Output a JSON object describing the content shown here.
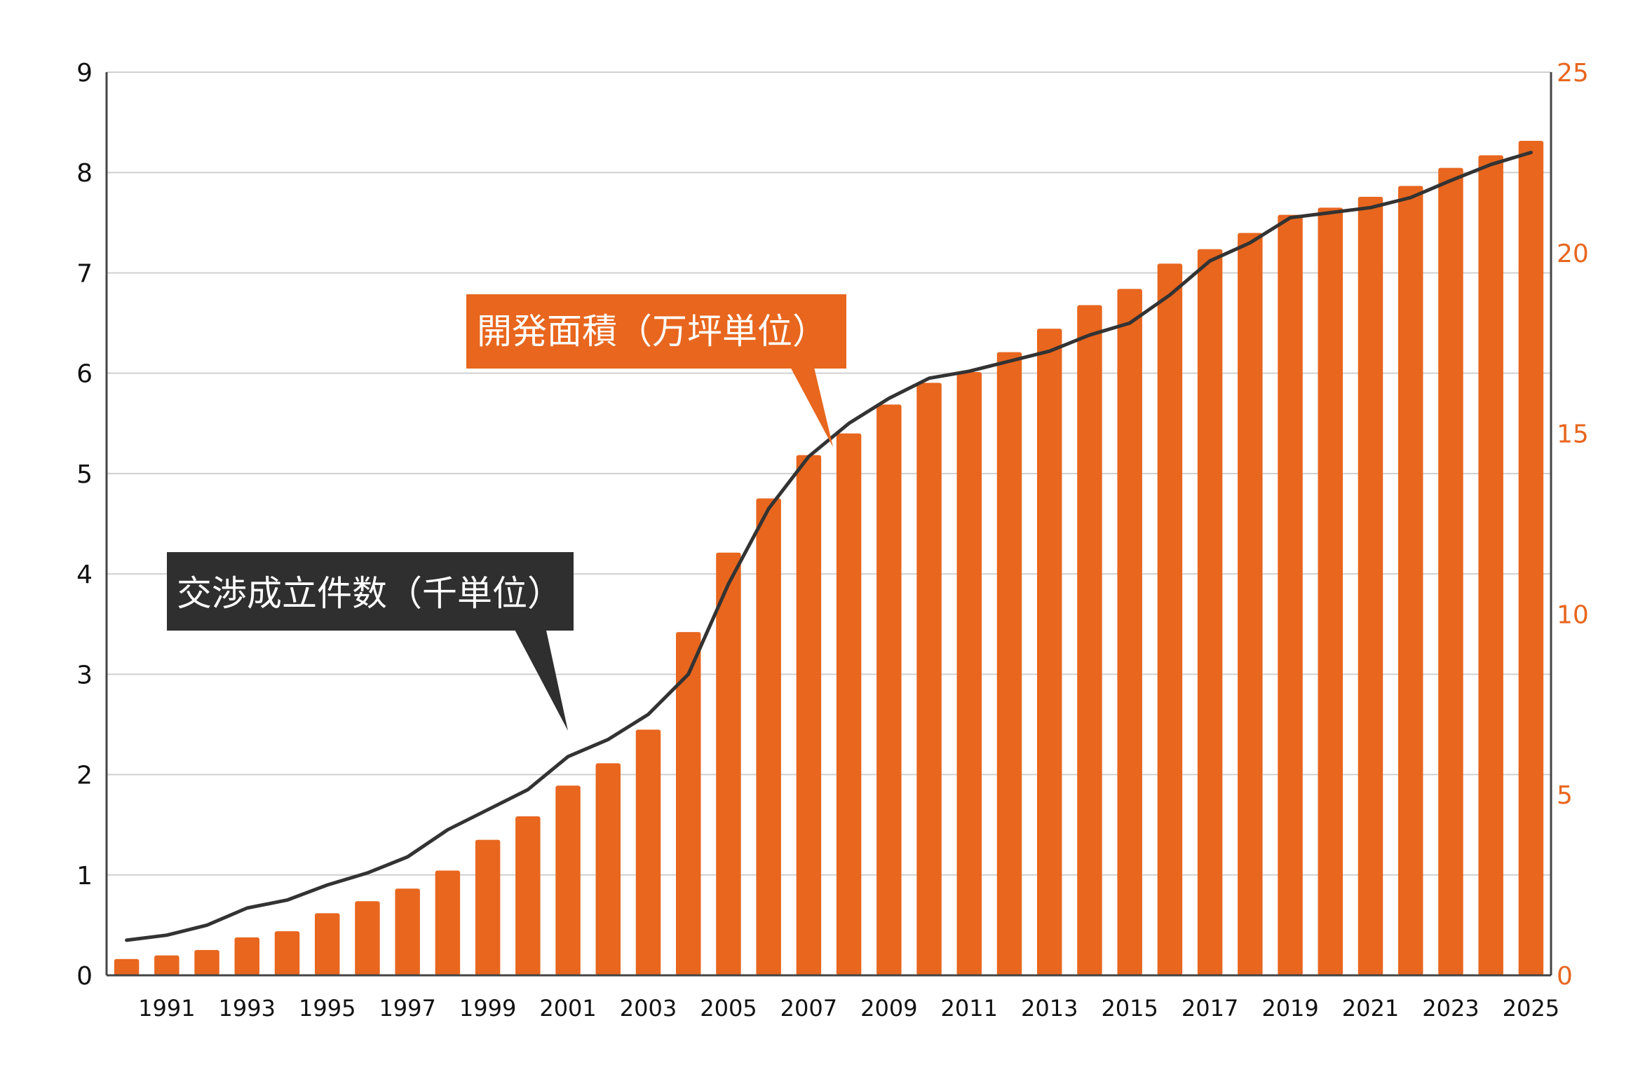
{
  "colors": {
    "bar": "#E8661E",
    "line": "#333333",
    "grid": "#D0D0D0",
    "left_axis_text": "#111111",
    "right_axis_text": "#E8661E",
    "bar_callout_bg": "#E8661E",
    "line_callout_bg": "#2F2F2F"
  },
  "chart_data": {
    "type": "bar+line",
    "title": "",
    "x": [
      1990,
      1991,
      1992,
      1993,
      1994,
      1995,
      1996,
      1997,
      1998,
      1999,
      2000,
      2001,
      2002,
      2003,
      2004,
      2005,
      2006,
      2007,
      2008,
      2009,
      2010,
      2011,
      2012,
      2013,
      2014,
      2015,
      2016,
      2017,
      2018,
      2019,
      2020,
      2021,
      2022,
      2023,
      2024,
      2025
    ],
    "x_tick_labels": [
      "1991",
      "1993",
      "1995",
      "1997",
      "1999",
      "2001",
      "2003",
      "2005",
      "2007",
      "2009",
      "2011",
      "2013",
      "2015",
      "2017",
      "2019",
      "2021",
      "2023",
      "2025"
    ],
    "left_axis": {
      "min": 0,
      "max": 9,
      "ticks": [
        "0",
        "1",
        "2",
        "3",
        "4",
        "5",
        "6",
        "7",
        "8",
        "9"
      ]
    },
    "right_axis": {
      "min": 0,
      "max": 25,
      "ticks": [
        "0",
        "5",
        "10",
        "15",
        "20",
        "25"
      ]
    },
    "series": [
      {
        "name": "開発面積（万坪単位）",
        "type": "bar",
        "axis": "right",
        "values": [
          0.45,
          0.55,
          0.7,
          1.05,
          1.22,
          1.72,
          2.05,
          2.4,
          2.9,
          3.75,
          4.4,
          5.25,
          5.87,
          6.8,
          9.5,
          11.7,
          13.2,
          14.4,
          15.0,
          15.8,
          16.4,
          16.7,
          17.25,
          17.9,
          18.55,
          19.0,
          19.7,
          20.1,
          20.55,
          21.05,
          21.25,
          21.55,
          21.85,
          22.35,
          22.7,
          23.1
        ]
      },
      {
        "name": "交渉成立件数（千単位）",
        "type": "line",
        "axis": "left",
        "values": [
          0.35,
          0.4,
          0.5,
          0.67,
          0.75,
          0.9,
          1.02,
          1.18,
          1.45,
          1.65,
          1.85,
          2.18,
          2.35,
          2.6,
          3.0,
          3.9,
          4.65,
          5.17,
          5.5,
          5.75,
          5.95,
          6.02,
          6.12,
          6.22,
          6.38,
          6.5,
          6.78,
          7.12,
          7.3,
          7.55,
          7.6,
          7.65,
          7.75,
          7.92,
          8.08,
          8.2
        ]
      }
    ],
    "annotations": {
      "bar_label": "開発面積（万坪単位）",
      "line_label": "交渉成立件数（千単位）"
    },
    "grid": true,
    "legend": "callouts"
  }
}
